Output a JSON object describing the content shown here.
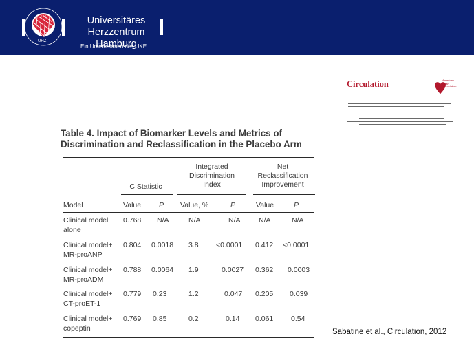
{
  "header": {
    "logo_ring_text": "UNIVERSITÄRES HERZZENTRUM",
    "logo_abbrev": "UHZ",
    "name_line1": "Universitäres Herzzentrum",
    "name_line2": "Hamburg",
    "tagline": "Ein Unternehmen des UKE",
    "colors": {
      "banner": "#0a1f6e",
      "logo_red": "#d8253b"
    }
  },
  "journal": {
    "name": "Circulation",
    "publisher_lines": [
      "American",
      "Heart",
      "Association."
    ]
  },
  "table": {
    "title_line1": "Table 4.   Impact of Biomarker Levels and Metrics of",
    "title_line2": "Discrimination and Reclassification in the Placebo Arm",
    "group_headers": {
      "c_statistic": "C Statistic",
      "idi_line1": "Integrated",
      "idi_line2": "Discrimination",
      "idi_line3": "Index",
      "nri_line1": "Net",
      "nri_line2": "Reclassification",
      "nri_line3": "Improvement"
    },
    "columns": [
      "Model",
      "Value",
      "P",
      "Value, %",
      "P",
      "Value",
      "P"
    ],
    "rows": [
      {
        "label1": "Clinical model",
        "label2": "alone",
        "values": [
          "0.768",
          "N/A",
          "N/A",
          "N/A",
          "N/A",
          "N/A"
        ]
      },
      {
        "label1": "Clinical model+",
        "label2": "MR-proANP",
        "values": [
          "0.804",
          "0.0018",
          "3.8",
          "<0.0001",
          "0.412",
          "<0.0001"
        ]
      },
      {
        "label1": "Clinical model+",
        "label2": "MR-proADM",
        "values": [
          "0.788",
          "0.0064",
          "1.9",
          "0.0027",
          "0.362",
          "0.0003"
        ]
      },
      {
        "label1": "Clinical model+",
        "label2": "CT-proET-1",
        "values": [
          "0.779",
          "0.23",
          "1.2",
          "0.047",
          "0.205",
          "0.039"
        ]
      },
      {
        "label1": "Clinical model+",
        "label2": "copeptin",
        "values": [
          "0.769",
          "0.85",
          "0.2",
          "0.14",
          "0.061",
          "0.54"
        ]
      }
    ]
  },
  "citation": "Sabatine et al., Circulation, 2012"
}
